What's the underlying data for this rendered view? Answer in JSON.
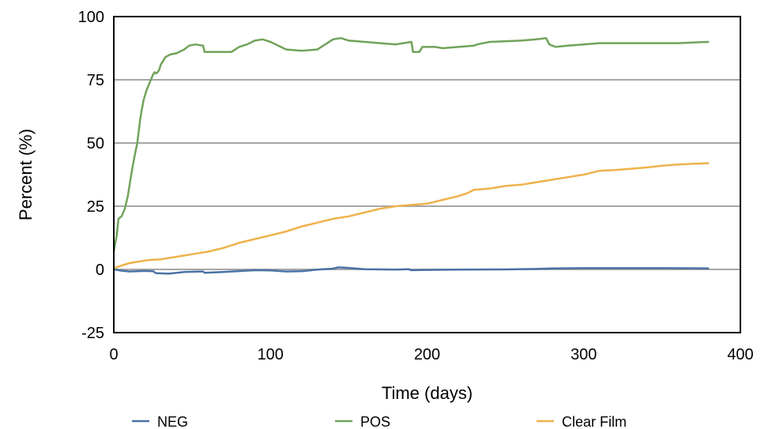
{
  "chart_data": {
    "type": "line",
    "title": "",
    "xlabel": "Time (days)",
    "ylabel": "Percent (%)",
    "xlim": [
      0,
      400
    ],
    "ylim": [
      -25,
      100
    ],
    "xticks": [
      0,
      100,
      200,
      300,
      400
    ],
    "yticks": [
      -25,
      0,
      25,
      50,
      75,
      100
    ],
    "grid": "horizontal",
    "legend_position": "bottom",
    "series": [
      {
        "name": "NEG",
        "color": "#4a72a6",
        "points": [
          [
            0,
            0
          ],
          [
            5,
            -0.5
          ],
          [
            10,
            -0.8
          ],
          [
            20,
            -0.6
          ],
          [
            25,
            -0.7
          ],
          [
            27,
            -1.5
          ],
          [
            35,
            -1.7
          ],
          [
            45,
            -1.0
          ],
          [
            57,
            -0.8
          ],
          [
            58,
            -1.3
          ],
          [
            70,
            -1.0
          ],
          [
            90,
            -0.3
          ],
          [
            100,
            -0.4
          ],
          [
            110,
            -0.8
          ],
          [
            120,
            -0.7
          ],
          [
            130,
            -0.1
          ],
          [
            140,
            0.3
          ],
          [
            143,
            0.8
          ],
          [
            150,
            0.6
          ],
          [
            160,
            0.1
          ],
          [
            180,
            -0.1
          ],
          [
            188,
            0.1
          ],
          [
            190,
            -0.3
          ],
          [
            200,
            -0.2
          ],
          [
            220,
            -0.1
          ],
          [
            250,
            0
          ],
          [
            270,
            0.2
          ],
          [
            280,
            0.4
          ],
          [
            300,
            0.5
          ],
          [
            320,
            0.5
          ],
          [
            350,
            0.5
          ],
          [
            380,
            0.4
          ]
        ]
      },
      {
        "name": "POS",
        "color": "#71a35a",
        "points": [
          [
            0,
            7
          ],
          [
            2,
            14
          ],
          [
            3,
            20
          ],
          [
            5,
            21
          ],
          [
            7,
            24
          ],
          [
            9,
            29
          ],
          [
            11,
            37
          ],
          [
            13,
            44
          ],
          [
            15,
            50
          ],
          [
            17,
            60
          ],
          [
            19,
            67
          ],
          [
            21,
            71
          ],
          [
            23,
            74
          ],
          [
            25,
            77
          ],
          [
            26,
            78
          ],
          [
            27,
            77.5
          ],
          [
            28,
            78
          ],
          [
            29,
            79
          ],
          [
            30,
            81
          ],
          [
            33,
            84
          ],
          [
            36,
            85
          ],
          [
            40,
            85.5
          ],
          [
            45,
            87
          ],
          [
            48,
            88.5
          ],
          [
            52,
            89
          ],
          [
            57,
            88.5
          ],
          [
            58,
            86
          ],
          [
            65,
            86
          ],
          [
            75,
            86
          ],
          [
            80,
            88
          ],
          [
            85,
            89
          ],
          [
            90,
            90.5
          ],
          [
            95,
            91
          ],
          [
            100,
            90
          ],
          [
            110,
            87
          ],
          [
            120,
            86.5
          ],
          [
            130,
            87
          ],
          [
            135,
            89
          ],
          [
            140,
            91
          ],
          [
            145,
            91.5
          ],
          [
            150,
            90.5
          ],
          [
            160,
            90
          ],
          [
            170,
            89.5
          ],
          [
            180,
            89
          ],
          [
            185,
            89.5
          ],
          [
            190,
            90
          ],
          [
            191,
            86
          ],
          [
            195,
            86
          ],
          [
            197,
            88
          ],
          [
            205,
            88
          ],
          [
            210,
            87.5
          ],
          [
            220,
            88
          ],
          [
            230,
            88.5
          ],
          [
            232,
            89
          ],
          [
            240,
            90
          ],
          [
            260,
            90.5
          ],
          [
            270,
            91
          ],
          [
            276,
            91.5
          ],
          [
            278,
            89
          ],
          [
            282,
            88
          ],
          [
            290,
            88.5
          ],
          [
            300,
            89
          ],
          [
            310,
            89.5
          ],
          [
            320,
            89.5
          ],
          [
            340,
            89.5
          ],
          [
            360,
            89.5
          ],
          [
            380,
            90
          ]
        ]
      },
      {
        "name": "Clear Film",
        "color": "#eeb24c",
        "points": [
          [
            0,
            0.5
          ],
          [
            5,
            1.5
          ],
          [
            10,
            2.5
          ],
          [
            15,
            3
          ],
          [
            20,
            3.5
          ],
          [
            25,
            3.8
          ],
          [
            30,
            4
          ],
          [
            35,
            4.5
          ],
          [
            40,
            5
          ],
          [
            50,
            6
          ],
          [
            55,
            6.5
          ],
          [
            60,
            7
          ],
          [
            70,
            8.5
          ],
          [
            80,
            10.5
          ],
          [
            90,
            12
          ],
          [
            100,
            13.5
          ],
          [
            110,
            15
          ],
          [
            115,
            16
          ],
          [
            120,
            17
          ],
          [
            130,
            18.5
          ],
          [
            140,
            20
          ],
          [
            150,
            21
          ],
          [
            160,
            22.5
          ],
          [
            170,
            24
          ],
          [
            180,
            25
          ],
          [
            190,
            25.5
          ],
          [
            200,
            26
          ],
          [
            210,
            27.5
          ],
          [
            220,
            29
          ],
          [
            225,
            30
          ],
          [
            230,
            31.5
          ],
          [
            240,
            32
          ],
          [
            250,
            33
          ],
          [
            260,
            33.5
          ],
          [
            270,
            34.5
          ],
          [
            275,
            35
          ],
          [
            280,
            35.5
          ],
          [
            290,
            36.5
          ],
          [
            300,
            37.5
          ],
          [
            310,
            39
          ],
          [
            320,
            39.3
          ],
          [
            330,
            39.8
          ],
          [
            340,
            40.3
          ],
          [
            350,
            41
          ],
          [
            360,
            41.5
          ],
          [
            370,
            41.8
          ],
          [
            380,
            42
          ]
        ]
      }
    ]
  }
}
